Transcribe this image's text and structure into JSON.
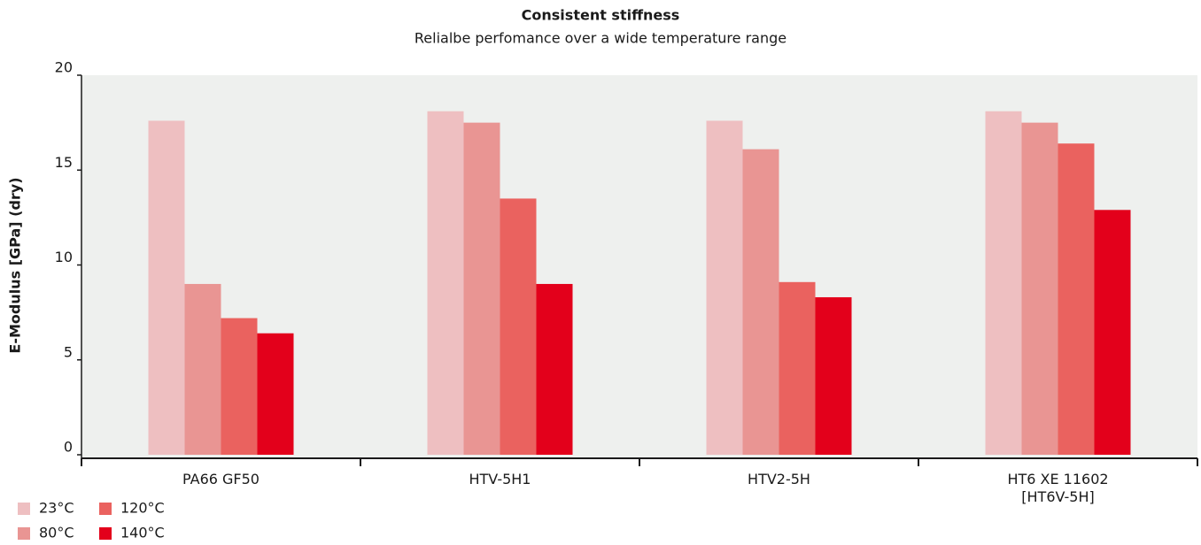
{
  "chart_data": {
    "type": "bar",
    "title": "Consistent stiffness",
    "subtitle": "Relialbe perfomance over a wide temperature range",
    "y_label": "E-Modulus [GPa] (dry)",
    "categories": [
      "PA66 GF50",
      "HTV-5H1",
      "HTV2-5H",
      "HT6 XE 11602\n[HT6V-5H]"
    ],
    "series": [
      {
        "name": "23°C",
        "color": "#eebfc1",
        "values": [
          17.6,
          18.1,
          17.6,
          18.1
        ]
      },
      {
        "name": "80°C",
        "color": "#e99593",
        "values": [
          9.0,
          17.5,
          16.1,
          17.5
        ]
      },
      {
        "name": "120°C",
        "color": "#ea625f",
        "values": [
          7.2,
          13.5,
          9.1,
          16.4
        ]
      },
      {
        "name": "140°C",
        "color": "#e3001b",
        "values": [
          6.4,
          9.0,
          8.3,
          12.9
        ]
      }
    ],
    "ylim": [
      0,
      20
    ],
    "yticks": [
      0,
      5,
      10,
      15,
      20
    ],
    "plot_background": "#eef0ee",
    "grid": false
  }
}
